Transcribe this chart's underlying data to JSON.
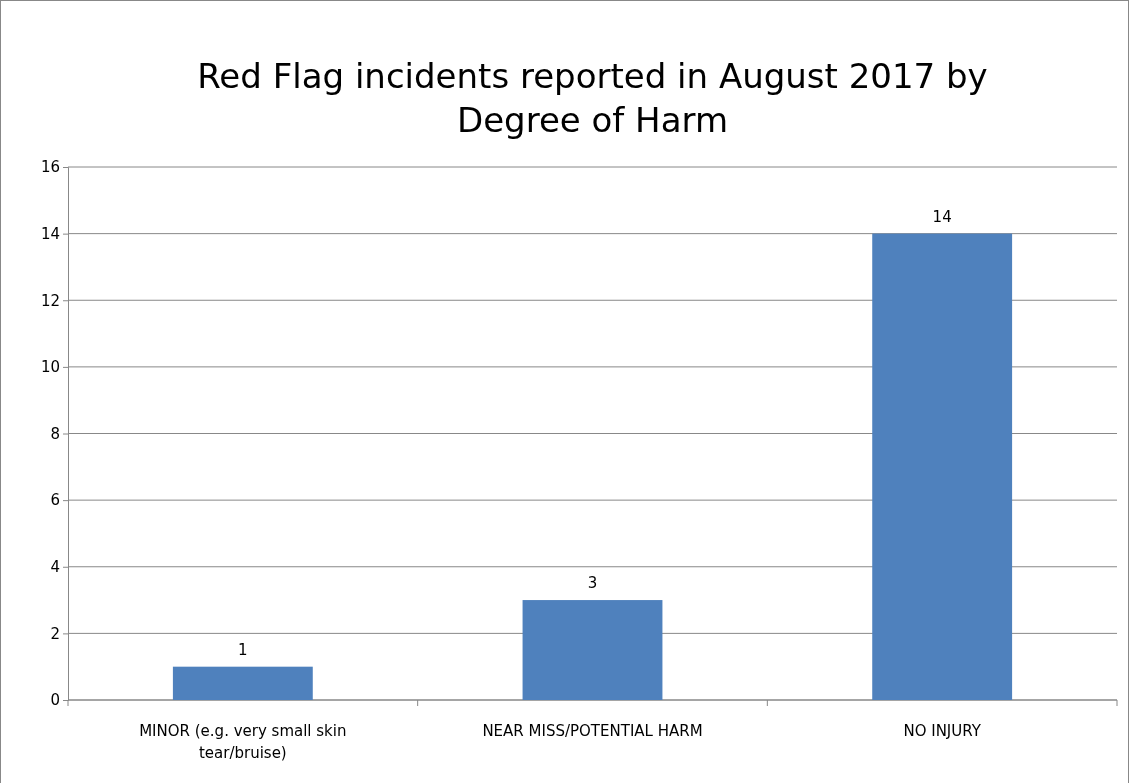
{
  "chart_data": {
    "type": "bar",
    "title": "Red Flag incidents reported in August 2017 by Degree of Harm",
    "categories": [
      "MINOR (e.g. very small skin tear/bruise)",
      "NEAR MISS/POTENTIAL HARM",
      "NO INJURY"
    ],
    "values": [
      1,
      3,
      14
    ],
    "color": "#4f81bd",
    "data_labels": true,
    "ylim": [
      0,
      16
    ],
    "yticks": [
      0,
      2,
      4,
      6,
      8,
      10,
      12,
      14,
      16
    ],
    "grid": "y"
  }
}
